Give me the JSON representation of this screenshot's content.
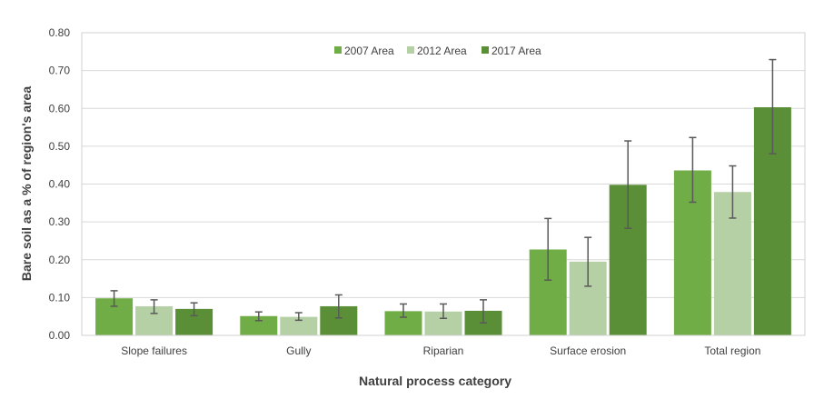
{
  "chart_data": {
    "type": "bar",
    "title": "",
    "xlabel": "Natural process category",
    "ylabel": "Bare soil as a % of region's area",
    "ylim": [
      0,
      0.8
    ],
    "yticks": [
      "0.00",
      "0.10",
      "0.20",
      "0.30",
      "0.40",
      "0.50",
      "0.60",
      "0.70",
      "0.80"
    ],
    "grid": true,
    "legend_position": "top-center",
    "categories": [
      "Slope failures",
      "Gully",
      "Riparian",
      "Surface erosion",
      "Total region"
    ],
    "series": [
      {
        "name": "2007 Area",
        "color": "#70ad47",
        "values": [
          0.098,
          0.051,
          0.064,
          0.227,
          0.436
        ],
        "error_low": [
          0.077,
          0.039,
          0.048,
          0.146,
          0.352
        ],
        "error_high": [
          0.118,
          0.062,
          0.083,
          0.309,
          0.523
        ]
      },
      {
        "name": "2012 Area",
        "color": "#b5d0a5",
        "values": [
          0.077,
          0.049,
          0.063,
          0.195,
          0.379
        ],
        "error_low": [
          0.058,
          0.04,
          0.045,
          0.13,
          0.31
        ],
        "error_high": [
          0.094,
          0.06,
          0.083,
          0.259,
          0.448
        ]
      },
      {
        "name": "2017 Area",
        "color": "#5b8f37",
        "values": [
          0.07,
          0.077,
          0.065,
          0.398,
          0.603
        ],
        "error_low": [
          0.052,
          0.046,
          0.033,
          0.283,
          0.48
        ],
        "error_high": [
          0.086,
          0.107,
          0.094,
          0.514,
          0.729
        ]
      }
    ]
  }
}
